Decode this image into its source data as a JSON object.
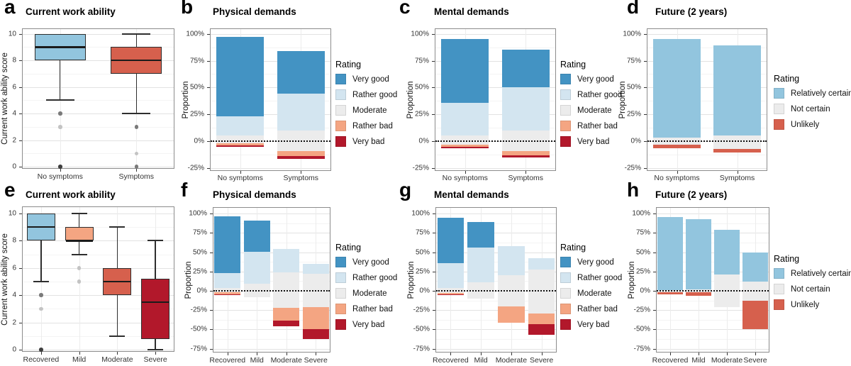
{
  "palette": {
    "ratings": {
      "Very good": "#4393c3",
      "Rather good": "#d3e5f0",
      "Moderate": "#ececec",
      "Rather bad": "#f4a582",
      "Very bad": "#b2182b",
      "Relatively certain": "#92c5de",
      "Not certain": "#ececec",
      "Unlikely": "#d6604d"
    },
    "outliers": {
      "dark": "#3f3f3f",
      "medium": "#7a7a7a",
      "light": "#c3c3c3"
    }
  },
  "legends": {
    "rating5": {
      "title": "Rating",
      "items": [
        {
          "label": "Very good",
          "color": "#4393c3"
        },
        {
          "label": "Rather good",
          "color": "#d3e5f0"
        },
        {
          "label": "Moderate",
          "color": "#ececec"
        },
        {
          "label": "Rather bad",
          "color": "#f4a582"
        },
        {
          "label": "Very bad",
          "color": "#b2182b"
        }
      ]
    },
    "rating3": {
      "title": "Rating",
      "items": [
        {
          "label": "Relatively certain",
          "color": "#92c5de"
        },
        {
          "label": "Not certain",
          "color": "#ececec"
        },
        {
          "label": "Unlikely",
          "color": "#d6604d"
        }
      ]
    }
  },
  "chart_data": [
    {
      "id": "a",
      "letter": "a",
      "type": "box",
      "title": "Current work ability",
      "ylabel": "Current work ability score",
      "yticks": [
        0,
        2,
        4,
        6,
        8,
        10
      ],
      "ylim": [
        0,
        10
      ],
      "tick_suffix": "",
      "categories": [
        "No symptoms",
        "Symptoms"
      ],
      "boxes": [
        {
          "category": "No symptoms",
          "color": "#92c5de",
          "whisker_low": 5,
          "q1": 8,
          "median": 9,
          "q3": 10,
          "whisker_high": 10,
          "outliers": [
            {
              "value": 4,
              "shade": "medium"
            },
            {
              "value": 3,
              "shade": "light"
            },
            {
              "value": 0,
              "shade": "dark"
            }
          ]
        },
        {
          "category": "Symptoms",
          "color": "#d6604d",
          "whisker_low": 4,
          "q1": 7,
          "median": 8,
          "q3": 9,
          "whisker_high": 10,
          "outliers": [
            {
              "value": 3,
              "shade": "medium"
            },
            {
              "value": 1,
              "shade": "light"
            },
            {
              "value": 0,
              "shade": "medium"
            }
          ]
        }
      ]
    },
    {
      "id": "b",
      "letter": "b",
      "type": "bar",
      "title": "Physical demands",
      "ylabel": "Proportion",
      "yticks": [
        -25,
        0,
        25,
        50,
        75,
        100
      ],
      "ylim": [
        -27,
        105
      ],
      "tick_suffix": "%",
      "legend_key": "rating5",
      "legend_position": "right",
      "categories": [
        "No symptoms",
        "Symptoms"
      ],
      "bars": [
        {
          "category": "No symptoms",
          "segments": [
            {
              "rating": "Very good",
              "from": 23,
              "to": 97
            },
            {
              "rating": "Rather good",
              "from": 5,
              "to": 23
            },
            {
              "rating": "Moderate",
              "from": -2,
              "to": 5
            },
            {
              "rating": "Rather bad",
              "from": -4,
              "to": -2
            },
            {
              "rating": "Very bad",
              "from": -5,
              "to": -4
            }
          ]
        },
        {
          "category": "Symptoms",
          "segments": [
            {
              "rating": "Very good",
              "from": 44,
              "to": 84
            },
            {
              "rating": "Rather good",
              "from": 10,
              "to": 44
            },
            {
              "rating": "Moderate",
              "from": -9,
              "to": 10
            },
            {
              "rating": "Rather bad",
              "from": -14,
              "to": -9
            },
            {
              "rating": "Very bad",
              "from": -16.5,
              "to": -14
            }
          ]
        }
      ]
    },
    {
      "id": "c",
      "letter": "c",
      "type": "bar",
      "title": "Mental demands",
      "ylabel": "Proportion",
      "yticks": [
        -25,
        0,
        25,
        50,
        75,
        100
      ],
      "ylim": [
        -27,
        105
      ],
      "tick_suffix": "%",
      "legend_key": "rating5",
      "legend_position": "right",
      "categories": [
        "No symptoms",
        "Symptoms"
      ],
      "bars": [
        {
          "category": "No symptoms",
          "segments": [
            {
              "rating": "Very good",
              "from": 36,
              "to": 95
            },
            {
              "rating": "Rather good",
              "from": 5,
              "to": 36
            },
            {
              "rating": "Moderate",
              "from": -3.5,
              "to": 5
            },
            {
              "rating": "Rather bad",
              "from": -5.5,
              "to": -3.5
            },
            {
              "rating": "Very bad",
              "from": -6.5,
              "to": -5.5
            }
          ]
        },
        {
          "category": "Symptoms",
          "segments": [
            {
              "rating": "Very good",
              "from": 50,
              "to": 85
            },
            {
              "rating": "Rather good",
              "from": 10,
              "to": 50
            },
            {
              "rating": "Moderate",
              "from": -9.5,
              "to": 10
            },
            {
              "rating": "Rather bad",
              "from": -13.5,
              "to": -9.5
            },
            {
              "rating": "Very bad",
              "from": -15.5,
              "to": -13.5
            }
          ]
        }
      ]
    },
    {
      "id": "d",
      "letter": "d",
      "type": "bar",
      "title": "Future (2 years)",
      "ylabel": "Proportion",
      "yticks": [
        -25,
        0,
        25,
        50,
        75,
        100
      ],
      "ylim": [
        -27,
        105
      ],
      "tick_suffix": "%",
      "legend_key": "rating3",
      "legend_position": "right",
      "categories": [
        "No symptoms",
        "Symptoms"
      ],
      "bars": [
        {
          "category": "No symptoms",
          "segments": [
            {
              "rating": "Relatively certain",
              "from": 3,
              "to": 95
            },
            {
              "rating": "Not certain",
              "from": -3,
              "to": 3
            },
            {
              "rating": "Unlikely",
              "from": -6.5,
              "to": -3
            }
          ]
        },
        {
          "category": "Symptoms",
          "segments": [
            {
              "rating": "Relatively certain",
              "from": 5,
              "to": 89
            },
            {
              "rating": "Not certain",
              "from": -7,
              "to": 5
            },
            {
              "rating": "Unlikely",
              "from": -10.5,
              "to": -7
            }
          ]
        }
      ]
    },
    {
      "id": "e",
      "letter": "e",
      "type": "box",
      "title": "Current work ability",
      "ylabel": "Current work ability score",
      "yticks": [
        0,
        2,
        4,
        6,
        8,
        10
      ],
      "ylim": [
        0,
        10
      ],
      "tick_suffix": "",
      "categories": [
        "Recovered",
        "Mild",
        "Moderate",
        "Severe"
      ],
      "boxes": [
        {
          "category": "Recovered",
          "color": "#92c5de",
          "whisker_low": 5,
          "q1": 8,
          "median": 9,
          "q3": 10,
          "whisker_high": 10,
          "outliers": [
            {
              "value": 4,
              "shade": "medium"
            },
            {
              "value": 3,
              "shade": "light"
            },
            {
              "value": 0,
              "shade": "dark"
            }
          ]
        },
        {
          "category": "Mild",
          "color": "#f4a582",
          "whisker_low": 7,
          "q1": 8,
          "median": 8,
          "q3": 9,
          "whisker_high": 10,
          "outliers": [
            {
              "value": 6,
              "shade": "light"
            },
            {
              "value": 5,
              "shade": "light"
            }
          ]
        },
        {
          "category": "Moderate",
          "color": "#d6604d",
          "whisker_low": 1,
          "q1": 4,
          "median": 5,
          "q3": 6,
          "whisker_high": 9,
          "outliers": []
        },
        {
          "category": "Severe",
          "color": "#b2182b",
          "whisker_low": 0,
          "q1": 0.8,
          "median": 3.5,
          "q3": 5.2,
          "whisker_high": 8,
          "outliers": []
        }
      ]
    },
    {
      "id": "f",
      "letter": "f",
      "type": "bar",
      "title": "Physical demands",
      "ylabel": "Proportion",
      "yticks": [
        -75,
        -50,
        -25,
        0,
        25,
        50,
        75,
        100
      ],
      "ylim": [
        -80,
        108
      ],
      "tick_suffix": "%",
      "legend_key": "rating5",
      "legend_position": "right",
      "categories": [
        "Recovered",
        "Mild",
        "Moderate",
        "Severe"
      ],
      "bars": [
        {
          "category": "Recovered",
          "segments": [
            {
              "rating": "Very good",
              "from": 23,
              "to": 97
            },
            {
              "rating": "Rather good",
              "from": 4,
              "to": 23
            },
            {
              "rating": "Moderate",
              "from": -2,
              "to": 4
            },
            {
              "rating": "Rather bad",
              "from": -4.5,
              "to": -2
            },
            {
              "rating": "Very bad",
              "from": -5.5,
              "to": -4.5
            }
          ]
        },
        {
          "category": "Mild",
          "segments": [
            {
              "rating": "Very good",
              "from": 51,
              "to": 91
            },
            {
              "rating": "Rather good",
              "from": 9,
              "to": 51
            },
            {
              "rating": "Moderate",
              "from": -8,
              "to": 9
            }
          ]
        },
        {
          "category": "Moderate",
          "segments": [
            {
              "rating": "Rather good",
              "from": 24,
              "to": 54
            },
            {
              "rating": "Moderate",
              "from": -22,
              "to": 24
            },
            {
              "rating": "Rather bad",
              "from": -39,
              "to": -22
            },
            {
              "rating": "Very bad",
              "from": -46,
              "to": -39
            }
          ]
        },
        {
          "category": "Severe",
          "segments": [
            {
              "rating": "Rather good",
              "from": 22,
              "to": 35
            },
            {
              "rating": "Moderate",
              "from": -21,
              "to": 22
            },
            {
              "rating": "Rather bad",
              "from": -50,
              "to": -21
            },
            {
              "rating": "Very bad",
              "from": -63,
              "to": -50
            }
          ]
        }
      ]
    },
    {
      "id": "g",
      "letter": "g",
      "type": "bar",
      "title": "Mental demands",
      "ylabel": "Proportion",
      "yticks": [
        -75,
        -50,
        -25,
        0,
        25,
        50,
        75,
        100
      ],
      "ylim": [
        -80,
        108
      ],
      "tick_suffix": "%",
      "legend_key": "rating5",
      "legend_position": "right",
      "categories": [
        "Recovered",
        "Mild",
        "Moderate",
        "Severe"
      ],
      "bars": [
        {
          "category": "Recovered",
          "segments": [
            {
              "rating": "Very good",
              "from": 36,
              "to": 95
            },
            {
              "rating": "Rather good",
              "from": 4,
              "to": 36
            },
            {
              "rating": "Moderate",
              "from": -2.5,
              "to": 4
            },
            {
              "rating": "Rather bad",
              "from": -4.5,
              "to": -2.5
            },
            {
              "rating": "Very bad",
              "from": -5.5,
              "to": -4.5
            }
          ]
        },
        {
          "category": "Mild",
          "segments": [
            {
              "rating": "Very good",
              "from": 56,
              "to": 89
            },
            {
              "rating": "Rather good",
              "from": 11,
              "to": 56
            },
            {
              "rating": "Moderate",
              "from": -10,
              "to": 11
            }
          ]
        },
        {
          "category": "Moderate",
          "segments": [
            {
              "rating": "Rather good",
              "from": 20,
              "to": 58
            },
            {
              "rating": "Moderate",
              "from": -20,
              "to": 20
            },
            {
              "rating": "Rather bad",
              "from": -41,
              "to": -20
            }
          ]
        },
        {
          "category": "Severe",
          "segments": [
            {
              "rating": "Rather good",
              "from": 28,
              "to": 42
            },
            {
              "rating": "Moderate",
              "from": -29,
              "to": 28
            },
            {
              "rating": "Rather bad",
              "from": -43,
              "to": -29
            },
            {
              "rating": "Very bad",
              "from": -57,
              "to": -43
            }
          ]
        }
      ]
    },
    {
      "id": "h",
      "letter": "h",
      "type": "bar",
      "title": "Future (2 years)",
      "ylabel": "Proportion",
      "yticks": [
        -75,
        -50,
        -25,
        0,
        25,
        50,
        75,
        100
      ],
      "ylim": [
        -80,
        108
      ],
      "tick_suffix": "%",
      "legend_key": "rating3",
      "legend_position": "right",
      "categories": [
        "Recovered",
        "Mild",
        "Moderate",
        "Severe"
      ],
      "bars": [
        {
          "category": "Recovered",
          "segments": [
            {
              "rating": "Relatively certain",
              "from": 1,
              "to": 96
            },
            {
              "rating": "Not certain",
              "from": -2,
              "to": 1
            },
            {
              "rating": "Unlikely",
              "from": -5,
              "to": -2
            }
          ]
        },
        {
          "category": "Mild",
          "segments": [
            {
              "rating": "Relatively certain",
              "from": 2,
              "to": 93
            },
            {
              "rating": "Not certain",
              "from": -1.5,
              "to": 2
            },
            {
              "rating": "Unlikely",
              "from": -6.5,
              "to": -1.5
            }
          ]
        },
        {
          "category": "Moderate",
          "segments": [
            {
              "rating": "Relatively certain",
              "from": 21,
              "to": 79
            },
            {
              "rating": "Not certain",
              "from": -21,
              "to": 21
            }
          ]
        },
        {
          "category": "Severe",
          "segments": [
            {
              "rating": "Relatively certain",
              "from": 12,
              "to": 50
            },
            {
              "rating": "Not certain",
              "from": -13,
              "to": 12
            },
            {
              "rating": "Unlikely",
              "from": -50,
              "to": -13
            }
          ]
        }
      ]
    }
  ]
}
